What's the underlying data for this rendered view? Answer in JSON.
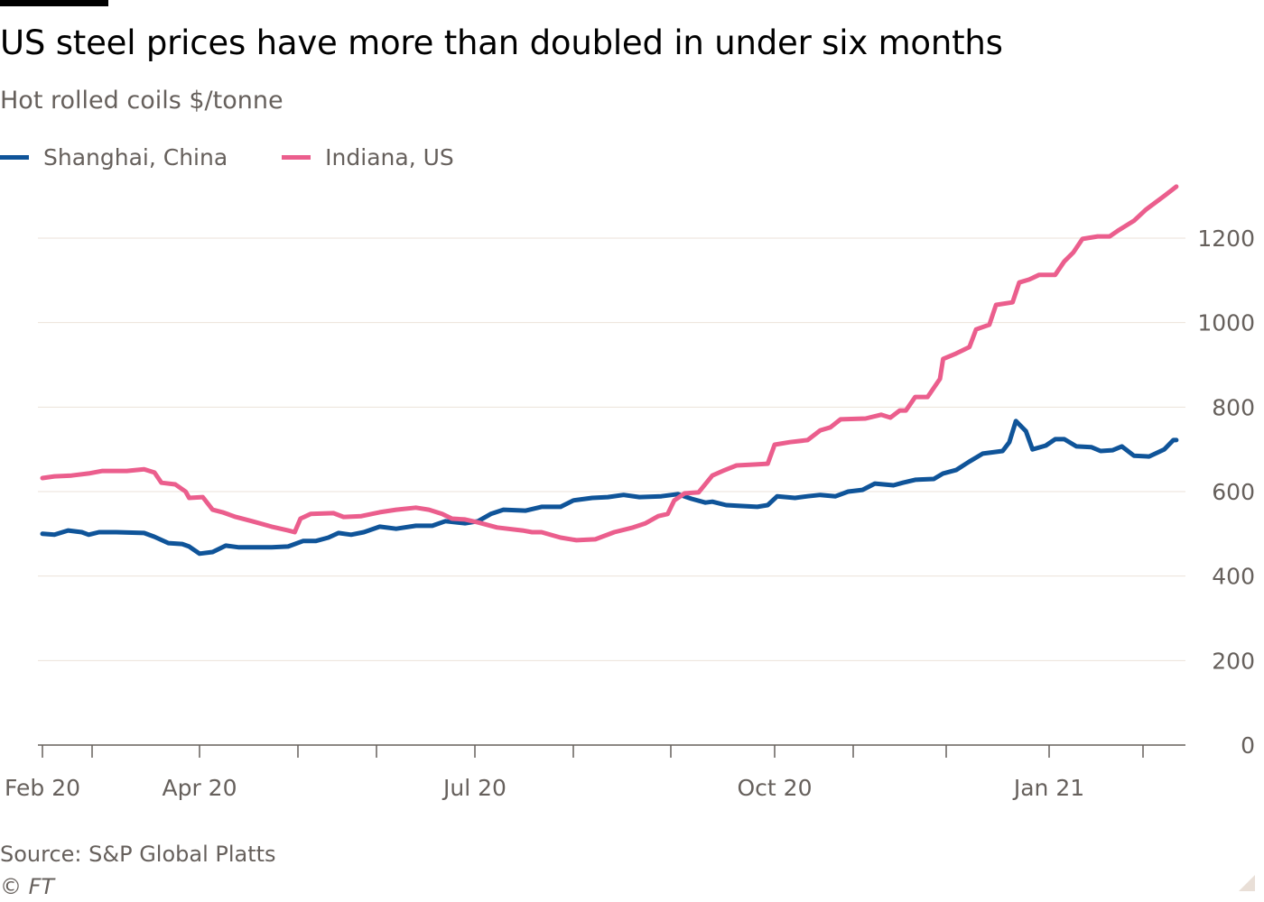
{
  "chart_data": {
    "type": "line",
    "title": "US steel prices have more than doubled in under six months",
    "subtitle": "Hot rolled coils $/tonne",
    "source": "Source: S&P Global Platts",
    "copyright": "© FT",
    "ylim": [
      0,
      1200
    ],
    "yticks": [
      0,
      200,
      400,
      600,
      800,
      1000,
      1200
    ],
    "ytick_labels": [
      "0",
      "200",
      "400",
      "600",
      "800",
      "1000",
      "1200"
    ],
    "xtick_labels": [
      {
        "date": "2020-02-01",
        "label": "Feb 20"
      },
      {
        "date": "2020-04-01",
        "label": "Apr 20"
      },
      {
        "date": "2020-07-01",
        "label": "Jul 20"
      },
      {
        "date": "2020-10-01",
        "label": "Oct 20"
      },
      {
        "date": "2021-01-01",
        "label": "Jan 21"
      }
    ],
    "grid": true,
    "legend_position": "top-left",
    "series": [
      {
        "name": "Shanghai, China",
        "color": "#0f5499",
        "x": [
          "2020-02-01",
          "2020-02-08",
          "2020-02-16",
          "2020-02-24",
          "2020-02-28",
          "2020-03-03",
          "2020-03-08",
          "2020-03-16",
          "2020-03-19",
          "2020-03-23",
          "2020-03-27",
          "2020-03-29",
          "2020-04-01",
          "2020-04-05",
          "2020-04-09",
          "2020-04-13",
          "2020-04-17",
          "2020-04-23",
          "2020-04-28",
          "2020-05-03",
          "2020-05-08",
          "2020-05-13",
          "2020-05-17",
          "2020-05-22",
          "2020-05-27",
          "2020-06-02",
          "2020-06-07",
          "2020-06-13",
          "2020-06-18",
          "2020-06-22",
          "2020-06-28",
          "2020-07-02",
          "2020-07-06",
          "2020-07-10",
          "2020-07-17",
          "2020-07-22",
          "2020-07-28",
          "2020-08-01",
          "2020-08-07",
          "2020-08-12",
          "2020-08-17",
          "2020-08-22",
          "2020-08-29",
          "2020-09-03",
          "2020-09-07",
          "2020-09-11",
          "2020-09-13",
          "2020-09-17",
          "2020-09-21",
          "2020-09-26",
          "2020-09-29",
          "2020-10-02",
          "2020-10-09",
          "2020-10-14",
          "2020-10-19",
          "2020-10-25",
          "2020-10-30",
          "2020-11-04",
          "2020-11-08",
          "2020-11-14",
          "2020-11-17",
          "2020-11-21",
          "2020-11-27",
          "2020-11-30",
          "2020-12-04",
          "2020-12-08",
          "2020-12-12",
          "2020-12-18",
          "2020-12-20",
          "2020-12-22",
          "2020-12-25",
          "2020-12-27",
          "2020-12-31",
          "2021-01-03",
          "2021-01-06",
          "2021-01-10",
          "2021-01-15",
          "2021-01-18",
          "2021-01-22",
          "2021-01-25",
          "2021-01-29",
          "2021-02-03",
          "2021-02-08",
          "2021-02-11",
          "2021-02-12"
        ],
        "values": [
          500,
          498,
          508,
          504,
          498,
          504,
          504,
          502,
          493,
          478,
          476,
          470,
          453,
          457,
          472,
          468,
          468,
          468,
          470,
          483,
          483,
          491,
          502,
          498,
          504,
          517,
          512,
          519,
          519,
          530,
          525,
          530,
          547,
          557,
          555,
          564,
          564,
          579,
          585,
          587,
          592,
          587,
          589,
          594,
          583,
          574,
          576,
          568,
          566,
          564,
          568,
          589,
          585,
          589,
          592,
          589,
          600,
          604,
          619,
          615,
          621,
          628,
          630,
          643,
          651,
          671,
          690,
          696,
          717,
          767,
          743,
          700,
          709,
          724,
          724,
          707,
          705,
          696,
          698,
          707,
          685,
          683,
          700,
          722,
          722
        ]
      },
      {
        "name": "Indiana, US",
        "color": "#eb5e8d",
        "x": [
          "2020-02-01",
          "2020-02-08",
          "2020-02-18",
          "2020-02-28",
          "2020-03-04",
          "2020-03-11",
          "2020-03-16",
          "2020-03-19",
          "2020-03-21",
          "2020-03-25",
          "2020-03-28",
          "2020-03-29",
          "2020-04-02",
          "2020-04-05",
          "2020-04-08",
          "2020-04-12",
          "2020-04-17",
          "2020-04-23",
          "2020-04-28",
          "2020-04-30",
          "2020-05-02",
          "2020-05-06",
          "2020-05-15",
          "2020-05-19",
          "2020-05-26",
          "2020-06-02",
          "2020-06-07",
          "2020-06-13",
          "2020-06-17",
          "2020-06-21",
          "2020-06-24",
          "2020-06-28",
          "2020-07-02",
          "2020-07-08",
          "2020-07-16",
          "2020-07-19",
          "2020-07-22",
          "2020-07-28",
          "2020-08-02",
          "2020-08-08",
          "2020-08-14",
          "2020-08-20",
          "2020-08-24",
          "2020-08-28",
          "2020-08-31",
          "2020-09-02",
          "2020-09-05",
          "2020-09-09",
          "2020-09-13",
          "2020-09-16",
          "2020-09-20",
          "2020-09-25",
          "2020-09-29",
          "2020-10-01",
          "2020-10-07",
          "2020-10-14",
          "2020-10-19",
          "2020-10-23",
          "2020-10-27",
          "2020-11-05",
          "2020-11-10",
          "2020-11-13",
          "2020-11-16",
          "2020-11-18",
          "2020-11-21",
          "2020-11-25",
          "2020-11-29",
          "2020-11-30",
          "2020-12-04",
          "2020-12-08",
          "2020-12-10",
          "2020-12-14",
          "2020-12-16",
          "2020-12-21",
          "2020-12-23",
          "2020-12-26",
          "2020-12-29",
          "2021-01-03",
          "2021-01-06",
          "2021-01-09",
          "2021-01-12",
          "2021-01-17",
          "2021-01-21",
          "2021-01-24",
          "2021-01-29",
          "2021-02-02",
          "2021-02-08",
          "2021-02-12"
        ],
        "values": [
          632,
          636,
          638,
          643,
          649,
          649,
          653,
          645,
          621,
          617,
          600,
          585,
          587,
          557,
          551,
          540,
          530,
          517,
          508,
          504,
          536,
          547,
          549,
          540,
          542,
          551,
          557,
          562,
          557,
          547,
          536,
          534,
          527,
          515,
          508,
          504,
          504,
          491,
          485,
          487,
          504,
          515,
          525,
          542,
          547,
          579,
          596,
          598,
          638,
          649,
          662,
          664,
          666,
          711,
          717,
          722,
          745,
          752,
          771,
          773,
          782,
          775,
          792,
          792,
          824,
          824,
          867,
          914,
          927,
          942,
          984,
          995,
          1042,
          1048,
          1095,
          1102,
          1113,
          1113,
          1145,
          1166,
          1198,
          1204,
          1204,
          1219,
          1241,
          1268,
          1300,
          1322
        ]
      }
    ]
  }
}
